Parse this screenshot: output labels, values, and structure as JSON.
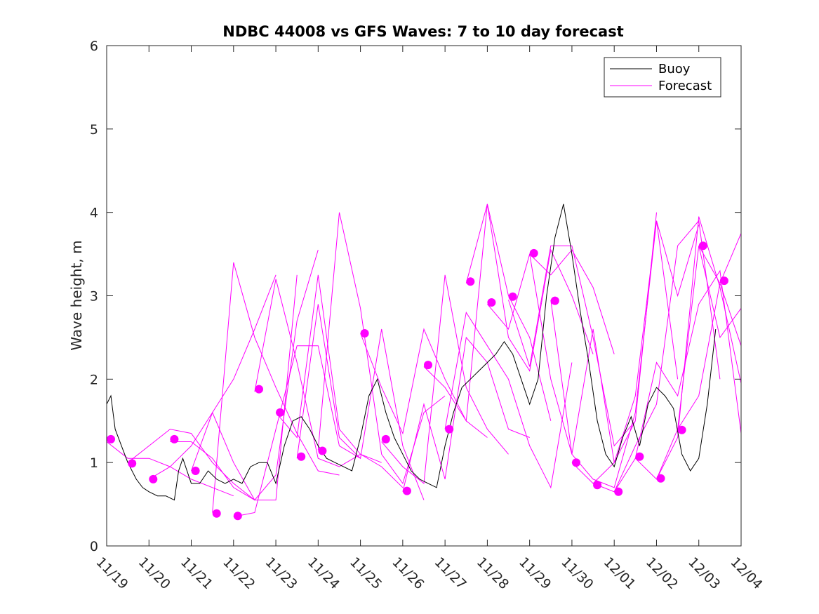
{
  "chart_data": {
    "type": "line",
    "title": "NDBC 44008 vs GFS Waves: 7 to 10 day forecast",
    "xlabel": "",
    "ylabel": "Wave height, m",
    "xlim": [
      0,
      15
    ],
    "ylim": [
      0,
      6
    ],
    "xtick_values": [
      0,
      1,
      2,
      3,
      4,
      5,
      6,
      7,
      8,
      9,
      10,
      11,
      12,
      13,
      14,
      15
    ],
    "xtick_labels": [
      "11/19",
      "11/20",
      "11/21",
      "11/22",
      "11/23",
      "11/24",
      "11/25",
      "11/26",
      "11/27",
      "11/28",
      "11/29",
      "11/30",
      "12/01",
      "12/02",
      "12/03",
      "12/04"
    ],
    "ytick_values": [
      0,
      1,
      2,
      3,
      4,
      5,
      6
    ],
    "ytick_labels": [
      "0",
      "1",
      "2",
      "3",
      "4",
      "5",
      "6"
    ],
    "grid": false,
    "legend": {
      "position": "top-right",
      "entries": [
        {
          "label": "Buoy",
          "color": "#000000"
        },
        {
          "label": "Forecast",
          "color": "#ff00ff"
        }
      ]
    },
    "series": [
      {
        "name": "Buoy",
        "color": "#000000",
        "x": [
          0,
          0.1,
          0.2,
          0.35,
          0.5,
          0.7,
          0.85,
          1.0,
          1.2,
          1.4,
          1.6,
          1.7,
          1.8,
          2.0,
          2.2,
          2.4,
          2.6,
          2.8,
          3.0,
          3.2,
          3.4,
          3.6,
          3.8,
          4.0,
          4.2,
          4.4,
          4.6,
          4.8,
          5.0,
          5.2,
          5.4,
          5.6,
          5.8,
          6.0,
          6.2,
          6.4,
          6.6,
          6.8,
          7.0,
          7.2,
          7.4,
          7.6,
          7.8,
          8.0,
          8.2,
          8.4,
          8.6,
          8.8,
          9.0,
          9.2,
          9.4,
          9.6,
          9.8,
          10.0,
          10.2,
          10.4,
          10.6,
          10.8,
          11.0,
          11.2,
          11.4,
          11.6,
          11.8,
          12.0,
          12.2,
          12.4,
          12.6,
          12.8,
          13.0,
          13.2,
          13.4,
          13.6,
          13.8,
          14.0,
          14.2,
          14.4
        ],
        "y": [
          1.7,
          1.8,
          1.4,
          1.2,
          1.0,
          0.8,
          0.7,
          0.65,
          0.6,
          0.6,
          0.55,
          0.9,
          1.05,
          0.75,
          0.75,
          0.9,
          0.8,
          0.75,
          0.8,
          0.75,
          0.95,
          1.0,
          1.0,
          0.75,
          1.2,
          1.5,
          1.55,
          1.4,
          1.2,
          1.05,
          1.0,
          0.95,
          0.9,
          1.3,
          1.8,
          2.0,
          1.6,
          1.3,
          1.1,
          0.9,
          0.8,
          0.75,
          0.7,
          1.2,
          1.6,
          1.9,
          2.0,
          2.1,
          2.2,
          2.3,
          2.45,
          2.3,
          2.0,
          1.7,
          2.0,
          3.0,
          3.7,
          4.1,
          3.5,
          2.8,
          2.2,
          1.5,
          1.1,
          0.95,
          1.3,
          1.55,
          1.2,
          1.7,
          1.9,
          1.8,
          1.65,
          1.1,
          0.9,
          1.05,
          1.7,
          2.6
        ]
      },
      {
        "name": "Forecast",
        "color": "#ff00ff",
        "lines": [
          {
            "x": [
              0.0,
              0.5,
              1.0,
              1.5,
              2.0,
              2.5,
              3.0
            ],
            "y": [
              1.25,
              1.05,
              1.05,
              0.95,
              0.8,
              0.7,
              0.6
            ]
          },
          {
            "x": [
              0.5,
              1.0,
              1.5,
              2.0,
              2.5,
              3.0,
              3.5
            ],
            "y": [
              1.0,
              1.2,
              1.4,
              1.35,
              1.0,
              0.75,
              0.55
            ]
          },
          {
            "x": [
              1.0,
              1.5,
              2.0,
              2.5,
              3.0,
              3.5,
              4.0
            ],
            "y": [
              0.8,
              0.95,
              1.2,
              1.6,
              2.0,
              2.6,
              3.25
            ]
          },
          {
            "x": [
              1.5,
              2.0,
              2.5,
              3.0,
              3.5,
              4.0,
              4.5
            ],
            "y": [
              1.25,
              1.25,
              1.05,
              0.7,
              0.55,
              0.55,
              3.25
            ]
          },
          {
            "x": [
              2.0,
              2.5,
              3.0,
              3.5,
              4.0,
              4.5,
              5.0
            ],
            "y": [
              0.9,
              1.6,
              1.0,
              0.55,
              0.85,
              2.7,
              3.55
            ]
          },
          {
            "x": [
              2.5,
              3.0,
              3.5,
              4.0,
              4.5,
              5.0,
              5.5
            ],
            "y": [
              0.4,
              3.4,
              2.5,
              1.9,
              1.35,
              0.9,
              0.85
            ]
          },
          {
            "x": [
              3.0,
              3.5,
              4.0,
              4.5,
              5.0,
              5.5,
              6.0
            ],
            "y": [
              0.35,
              0.4,
              1.4,
              2.4,
              2.4,
              1.2,
              1.05
            ]
          },
          {
            "x": [
              3.5,
              4.0,
              4.5,
              5.0,
              5.5,
              6.0,
              6.5
            ],
            "y": [
              1.85,
              3.2,
              2.2,
              1.05,
              0.95,
              1.1,
              1.0
            ]
          },
          {
            "x": [
              4.0,
              4.5,
              5.0,
              5.5,
              6.0,
              6.5,
              7.0
            ],
            "y": [
              1.6,
              1.3,
              3.25,
              1.4,
              1.1,
              0.95,
              0.7
            ]
          },
          {
            "x": [
              4.5,
              5.0,
              5.5,
              6.0,
              6.5,
              7.0,
              7.5
            ],
            "y": [
              1.05,
              2.9,
              1.3,
              1.05,
              2.6,
              1.2,
              0.55
            ]
          },
          {
            "x": [
              5.0,
              5.5,
              6.0,
              6.5,
              7.0,
              7.5,
              8.0
            ],
            "y": [
              1.15,
              4.0,
              2.85,
              1.1,
              0.75,
              1.6,
              1.8
            ]
          },
          {
            "x": [
              6.0,
              6.5,
              7.0,
              7.5,
              8.0,
              8.5,
              9.0
            ],
            "y": [
              2.55,
              1.9,
              1.35,
              2.6,
              2.0,
              1.5,
              1.3
            ]
          },
          {
            "x": [
              6.5,
              7.0,
              7.5,
              8.0,
              8.5,
              9.0,
              9.5
            ],
            "y": [
              1.25,
              0.95,
              0.75,
              3.25,
              1.9,
              1.4,
              1.1
            ]
          },
          {
            "x": [
              7.0,
              7.5,
              8.0,
              8.5,
              9.0,
              9.5,
              10.0
            ],
            "y": [
              0.65,
              1.7,
              0.8,
              2.5,
              2.2,
              1.4,
              1.3
            ]
          },
          {
            "x": [
              7.5,
              8.0,
              8.5,
              9.0,
              9.5,
              10.0,
              10.5
            ],
            "y": [
              2.15,
              1.9,
              1.5,
              4.1,
              3.0,
              2.5,
              1.5
            ]
          },
          {
            "x": [
              8.0,
              8.5,
              9.0,
              9.5,
              10.0,
              10.5,
              11.0
            ],
            "y": [
              1.4,
              2.8,
              2.4,
              2.0,
              1.2,
              0.7,
              2.2
            ]
          },
          {
            "x": [
              8.5,
              9.0,
              9.5,
              10.0,
              10.5,
              11.0,
              11.5
            ],
            "y": [
              3.15,
              4.1,
              2.5,
              2.1,
              3.55,
              3.0,
              2.3
            ]
          },
          {
            "x": [
              9.0,
              9.5,
              10.0,
              10.5,
              11.0,
              11.5,
              12.0
            ],
            "y": [
              2.9,
              2.6,
              3.5,
              3.25,
              3.55,
              3.1,
              2.3
            ]
          },
          {
            "x": [
              9.5,
              10.0,
              10.5,
              11.0,
              11.5,
              12.0,
              12.5
            ],
            "y": [
              2.95,
              2.15,
              3.6,
              3.6,
              2.5,
              1.2,
              1.5
            ]
          },
          {
            "x": [
              10.0,
              10.5,
              11.0,
              11.5,
              12.0,
              12.5,
              13.0
            ],
            "y": [
              3.5,
              2.0,
              1.1,
              2.6,
              1.0,
              1.5,
              4.0
            ]
          },
          {
            "x": [
              10.5,
              11.0,
              11.5,
              12.0,
              12.5,
              13.0,
              13.5
            ],
            "y": [
              2.95,
              1.1,
              0.8,
              0.7,
              1.6,
              3.9,
              2.0
            ]
          },
          {
            "x": [
              11.0,
              11.5,
              12.0,
              12.5,
              13.0,
              13.5,
              14.0
            ],
            "y": [
              1.0,
              0.75,
              1.0,
              1.8,
              3.9,
              3.0,
              3.85
            ]
          },
          {
            "x": [
              11.5,
              12.0,
              12.5,
              13.0,
              13.5,
              14.0,
              14.5
            ],
            "y": [
              0.75,
              0.65,
              1.2,
              1.7,
              3.6,
              3.9,
              2.0
            ]
          },
          {
            "x": [
              12.0,
              12.5,
              13.0,
              13.5,
              14.0,
              14.5,
              15.0
            ],
            "y": [
              0.65,
              1.05,
              2.2,
              1.8,
              2.9,
              3.3,
              1.35
            ]
          },
          {
            "x": [
              12.5,
              13.0,
              13.5,
              14.0,
              14.5,
              15.0
            ],
            "y": [
              1.05,
              0.8,
              1.3,
              3.95,
              3.1,
              1.95
            ]
          },
          {
            "x": [
              13.0,
              13.5,
              14.0,
              14.5,
              15.0
            ],
            "y": [
              0.8,
              1.4,
              3.6,
              2.5,
              2.85
            ]
          },
          {
            "x": [
              13.5,
              14.0,
              14.5,
              15.0
            ],
            "y": [
              1.4,
              1.8,
              3.15,
              3.75
            ]
          },
          {
            "x": [
              14.0,
              14.5,
              15.0
            ],
            "y": [
              3.6,
              3.15,
              2.4
            ]
          }
        ]
      },
      {
        "name": "Forecast start points",
        "color": "#ff00ff",
        "x": [
          0.1,
          0.6,
          1.1,
          1.6,
          2.1,
          2.6,
          3.1,
          3.6,
          4.1,
          4.6,
          5.1,
          6.1,
          6.6,
          7.1,
          7.6,
          8.1,
          8.6,
          9.1,
          9.6,
          10.1,
          10.6,
          11.1,
          11.6,
          12.1,
          12.6,
          13.1,
          13.6,
          14.1,
          14.6
        ],
        "y": [
          1.28,
          0.99,
          0.8,
          1.28,
          0.9,
          0.39,
          0.36,
          1.88,
          1.6,
          1.07,
          1.14,
          2.55,
          1.28,
          0.66,
          2.17,
          1.4,
          3.17,
          2.92,
          2.99,
          3.51,
          2.94,
          1.0,
          0.73,
          0.65,
          1.07,
          0.81,
          1.39,
          3.6,
          3.18
        ]
      }
    ]
  }
}
